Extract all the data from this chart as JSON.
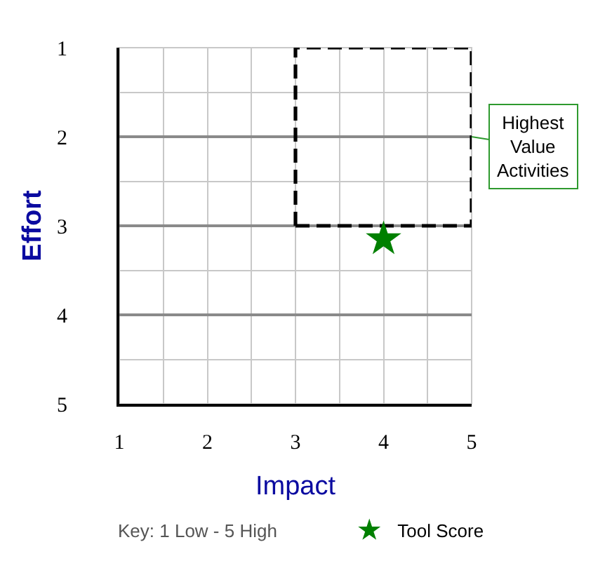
{
  "chart_data": {
    "type": "scatter",
    "xlabel": "Impact",
    "ylabel": "Effort",
    "xlim": [
      1,
      5
    ],
    "ylim": [
      5,
      1
    ],
    "xticks": [
      1,
      2,
      3,
      4,
      5
    ],
    "yticks": [
      1,
      2,
      3,
      4,
      5
    ],
    "grid": true,
    "legend": "bottom",
    "series": [
      {
        "type": "line",
        "color": "#000000",
        "line_style": "dashed",
        "marker": "none",
        "x": [
          3,
          3,
          5
        ],
        "values": [
          3,
          1,
          1
        ]
      },
      {
        "type": "line",
        "color": "#000000",
        "line_style": "dashed",
        "marker": "none",
        "x": [
          3,
          5,
          5,
          5
        ],
        "values": [
          3,
          3,
          2,
          1
        ]
      },
      {
        "name": "Tool Score",
        "color": "#008000",
        "marker": "star",
        "x": [
          4
        ],
        "values": [
          3.15
        ]
      }
    ],
    "annotations": [
      {
        "text": "Highest\nValue\nActivities",
        "x": 5,
        "y": 2
      },
      "Key: 1 Low - 5 High"
    ]
  }
}
